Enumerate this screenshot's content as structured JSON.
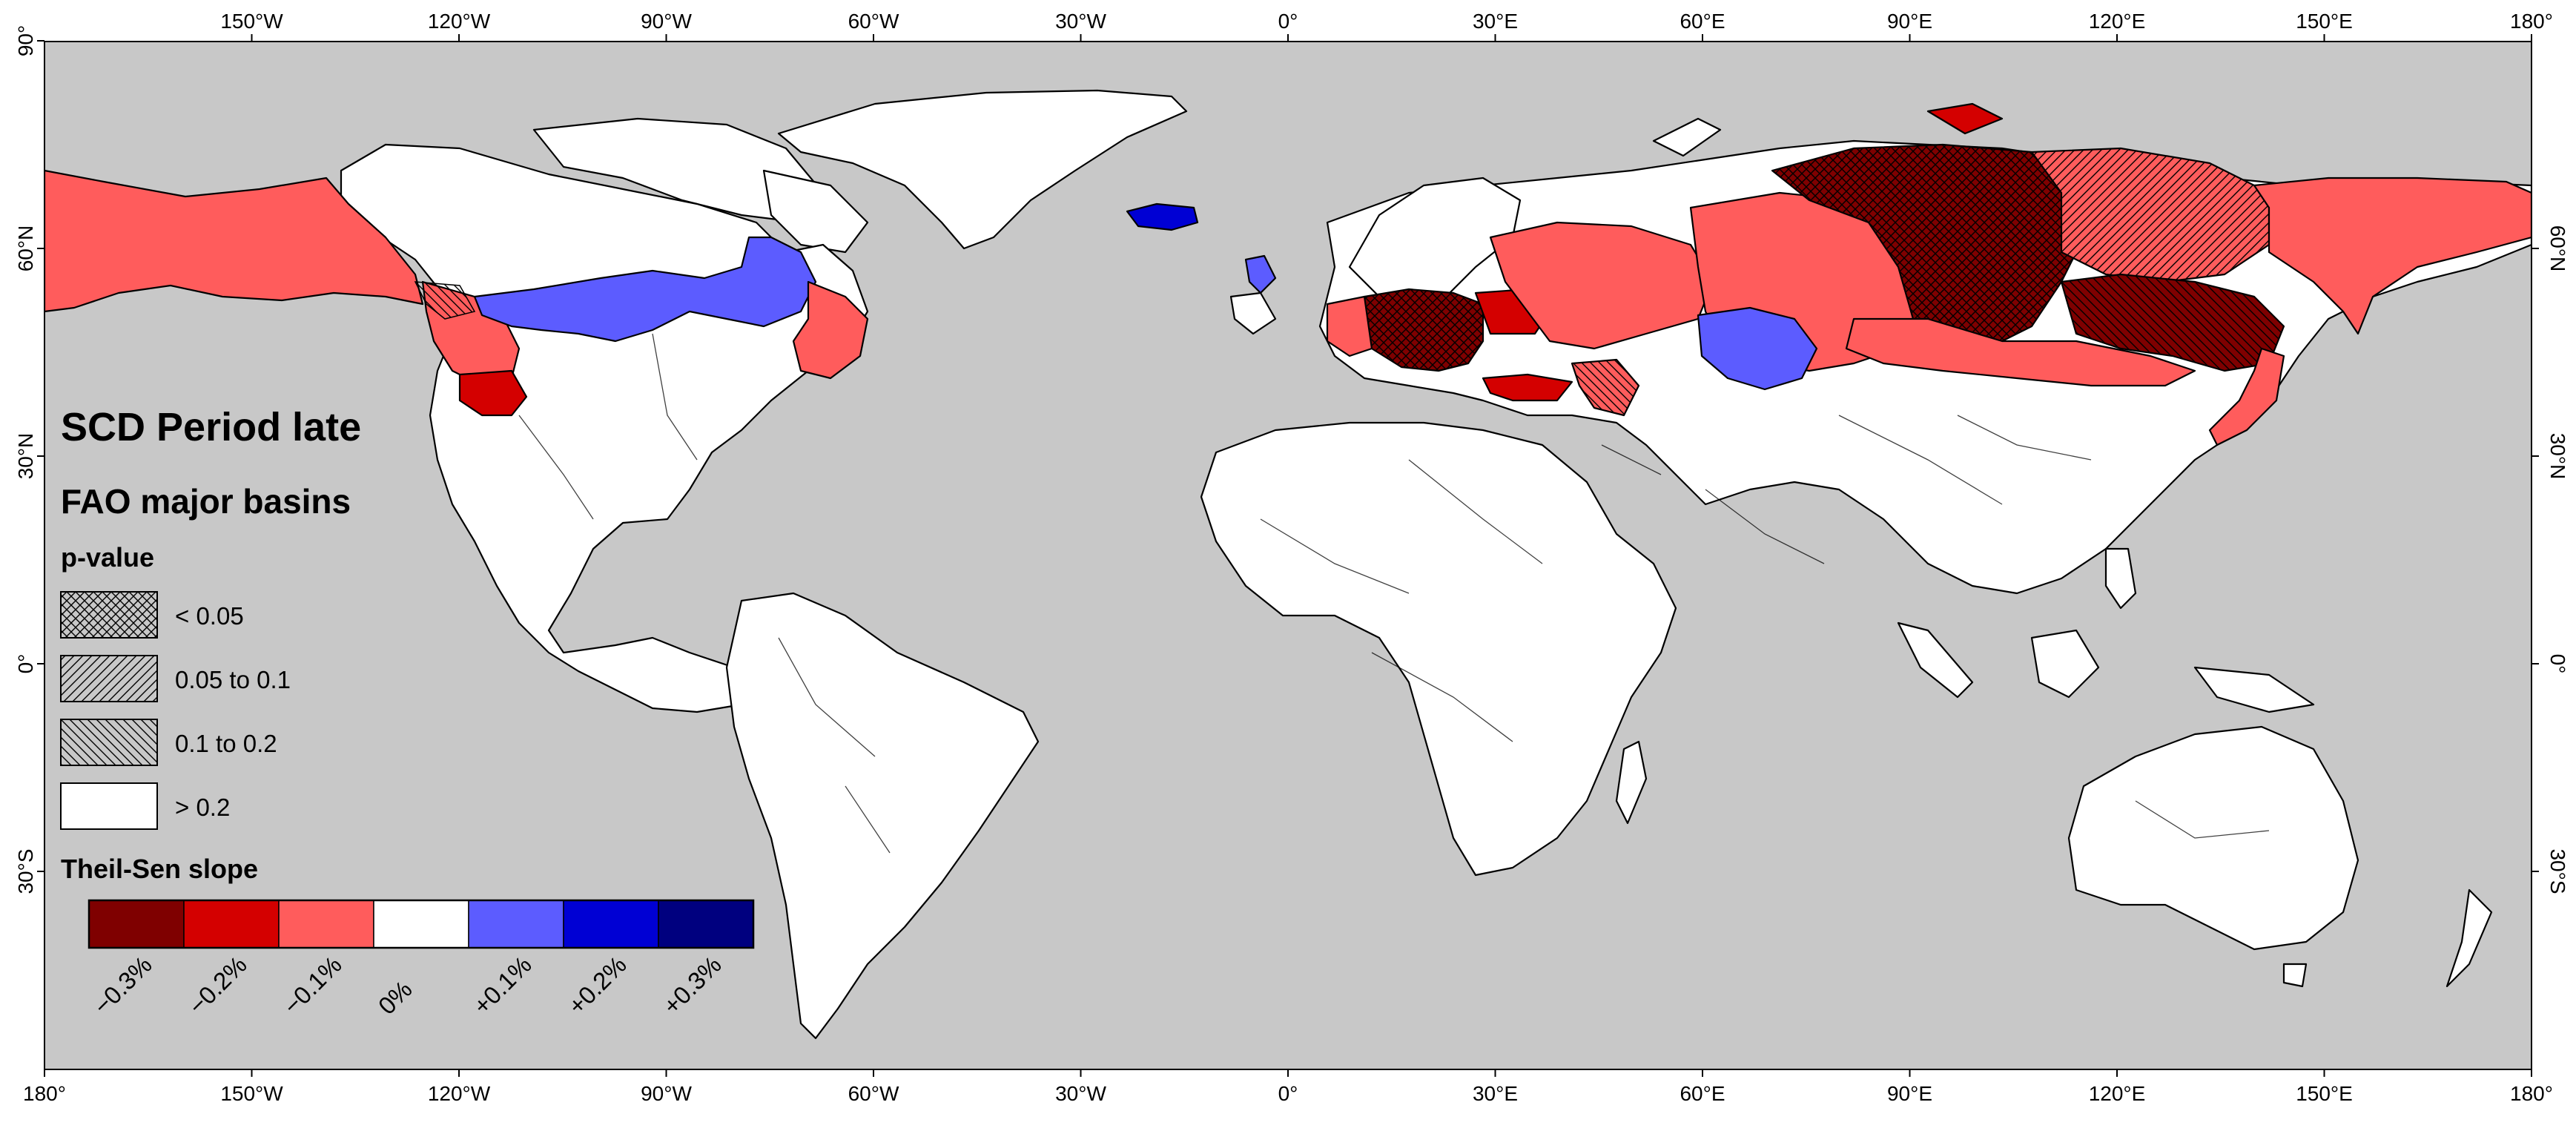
{
  "map": {
    "title": "SCD Period late",
    "subtitle": "FAO major basins",
    "ocean_color": "#c8c8c8",
    "land_default_color": "#ffffff"
  },
  "axes": {
    "top_lon_ticks": [
      "150°W",
      "120°W",
      "90°W",
      "60°W",
      "30°W",
      "0°",
      "30°E",
      "60°E",
      "90°E",
      "120°E",
      "150°E",
      "180°"
    ],
    "bottom_lon_ticks": [
      "180°",
      "150°W",
      "120°W",
      "90°W",
      "60°W",
      "30°W",
      "0°",
      "30°E",
      "60°E",
      "90°E",
      "120°E",
      "150°E",
      "180°"
    ],
    "left_lat_ticks": [
      "90°",
      "60°N",
      "30°N",
      "0°",
      "30°S"
    ],
    "right_lat_ticks": [
      "60°N",
      "30°N",
      "0°",
      "30°S"
    ]
  },
  "legend": {
    "pvalue": {
      "title": "p-value",
      "items": [
        {
          "label": "< 0.05",
          "pattern": "cross-hatch"
        },
        {
          "label": "0.05 to 0.1",
          "pattern": "forward-diagonal"
        },
        {
          "label": "0.1 to 0.2",
          "pattern": "backward-diagonal"
        },
        {
          "label": "> 0.2",
          "pattern": "none"
        }
      ]
    },
    "slope": {
      "title": "Theil-Sen slope",
      "bins": [
        {
          "label": "−0.3%",
          "color": "#7f0000"
        },
        {
          "label": "−0.2%",
          "color": "#d40000"
        },
        {
          "label": "−0.1%",
          "color": "#ff5c5c"
        },
        {
          "label": "0%",
          "color": "#ffffff"
        },
        {
          "label": "+0.1%",
          "color": "#5c5cff"
        },
        {
          "label": "+0.2%",
          "color": "#0000d4"
        },
        {
          "label": "+0.3%",
          "color": "#00007f"
        }
      ]
    }
  },
  "palette": {
    "neg_strong": "#7f0000",
    "neg_mid": "#d40000",
    "neg_weak": "#ff5c5c",
    "pos_weak": "#5c5cff",
    "pos_mid": "#0000d4"
  }
}
